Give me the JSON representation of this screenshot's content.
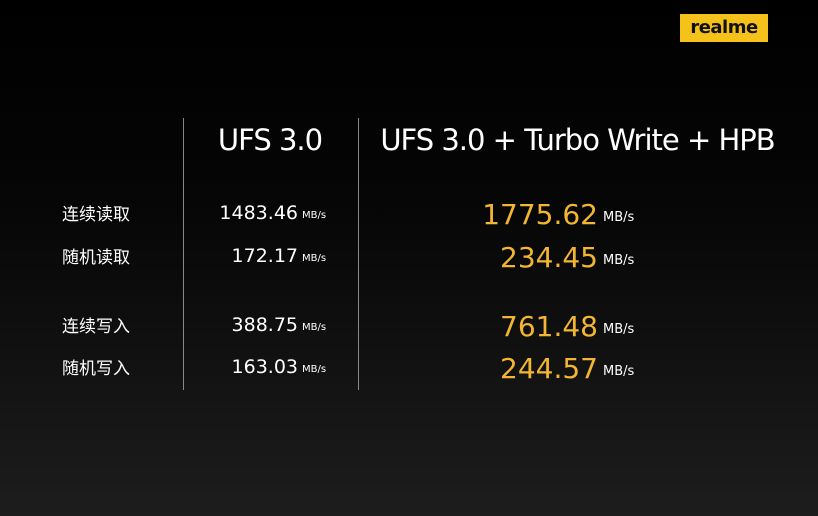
{
  "logo": "realme",
  "table": {
    "columns": [
      "UFS 3.0",
      "UFS 3.0 + Turbo Write + HPB"
    ],
    "unit": "MB/s",
    "rows": [
      {
        "label": "连续读取",
        "values": [
          1483.46,
          1775.62
        ]
      },
      {
        "label": "随机读取",
        "values": [
          172.17,
          234.45
        ]
      },
      {
        "label": "连续写入",
        "values": [
          388.75,
          761.48
        ]
      },
      {
        "label": "随机写入",
        "values": [
          163.03,
          244.57
        ]
      }
    ]
  }
}
